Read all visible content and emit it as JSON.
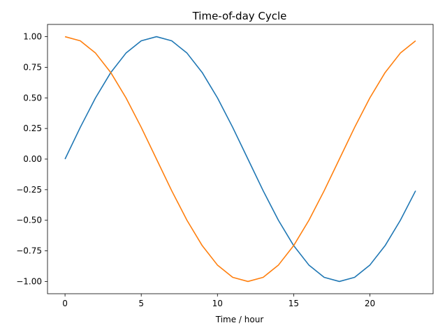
{
  "chart_data": {
    "type": "line",
    "title": "Time-of-day Cycle",
    "xlabel": "Time / hour",
    "ylabel": "",
    "xlim": [
      -1.15,
      24.15
    ],
    "ylim": [
      -1.1,
      1.1
    ],
    "xticks": [
      0,
      5,
      10,
      15,
      20
    ],
    "xtick_labels": [
      "0",
      "5",
      "10",
      "15",
      "20"
    ],
    "yticks": [
      1.0,
      0.75,
      0.5,
      0.25,
      0.0,
      -0.25,
      -0.5,
      -0.75,
      -1.0
    ],
    "ytick_labels": [
      "1.00",
      "0.75",
      "0.50",
      "0.25",
      "0.00",
      "−0.25",
      "−0.50",
      "−0.75",
      "−1.00"
    ],
    "grid": false,
    "legend": null,
    "x": [
      0,
      1,
      2,
      3,
      4,
      5,
      6,
      7,
      8,
      9,
      10,
      11,
      12,
      13,
      14,
      15,
      16,
      17,
      18,
      19,
      20,
      21,
      22,
      23
    ],
    "series": [
      {
        "color": "#1f77b4",
        "values": [
          0.0,
          0.259,
          0.5,
          0.707,
          0.866,
          0.966,
          1.0,
          0.966,
          0.866,
          0.707,
          0.5,
          0.259,
          0.0,
          -0.259,
          -0.5,
          -0.707,
          -0.866,
          -0.966,
          -1.0,
          -0.966,
          -0.866,
          -0.707,
          -0.5,
          -0.259
        ]
      },
      {
        "color": "#ff7f0e",
        "values": [
          1.0,
          0.966,
          0.866,
          0.707,
          0.5,
          0.259,
          0.0,
          -0.259,
          -0.5,
          -0.707,
          -0.866,
          -0.966,
          -1.0,
          -0.966,
          -0.866,
          -0.707,
          -0.5,
          -0.259,
          0.0,
          0.259,
          0.5,
          0.707,
          0.866,
          0.966
        ]
      }
    ]
  }
}
